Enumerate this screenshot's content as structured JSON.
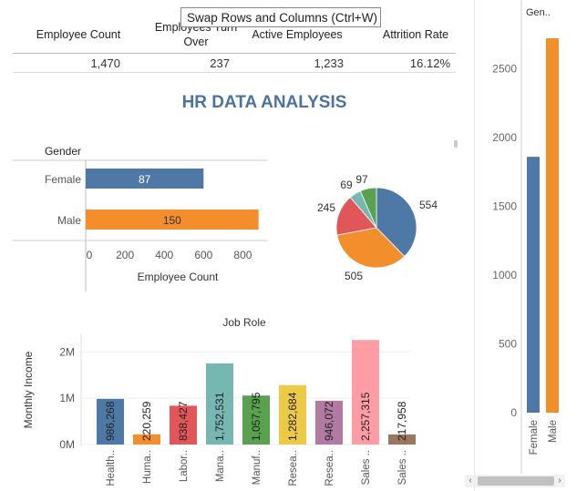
{
  "kpis": [
    {
      "label": "Employee Count",
      "value": "1,470"
    },
    {
      "label": "Employees Turn Over",
      "value": "237"
    },
    {
      "label": "Active Employees",
      "value": "1,233"
    },
    {
      "label": "Attrition Rate",
      "value": "16.12%"
    }
  ],
  "tooltip": "Swap Rows and Columns (Ctrl+W)",
  "dashboard_title": "HR DATA ANALYSIS",
  "colors": {
    "blue": "#4e79a7",
    "orange": "#f28e2b",
    "red": "#e15759",
    "teal": "#76b7b2",
    "green": "#59a14f",
    "yellow": "#edc948",
    "purple": "#b07aa1",
    "pink": "#ff9da7",
    "brown": "#9c755f",
    "title": "#4c72a4"
  },
  "chart_data": [
    {
      "type": "bar",
      "orientation": "horizontal",
      "row_header": "Gender",
      "categories": [
        "Female",
        "Male"
      ],
      "values": [
        87,
        150
      ],
      "bar_lengths": [
        600,
        880
      ],
      "xlabel": "Employee Count",
      "xticks": [
        "0",
        "200",
        "400",
        "600",
        "800"
      ],
      "xlim": [
        0,
        900
      ]
    },
    {
      "type": "pie",
      "values": [
        554,
        505,
        245,
        69,
        97
      ],
      "labels": [
        "554",
        "505",
        "245",
        "69",
        "97"
      ],
      "colors": [
        "#4e79a7",
        "#f28e2b",
        "#e15759",
        "#76b7b2",
        "#59a14f"
      ]
    },
    {
      "type": "bar",
      "title": "Job Role",
      "ylabel": "Monthly Income",
      "yticks": [
        "0M",
        "1M",
        "2M"
      ],
      "ylim": [
        0,
        2400000
      ],
      "categories": [
        "Health..",
        "Huma..",
        "Labor..",
        "Mana..",
        "Manuf..",
        "Resea..",
        "Resea..",
        "Sales ..",
        "Sales .."
      ],
      "values": [
        986268,
        220259,
        838427,
        1752531,
        1057795,
        1282684,
        946072,
        2257315,
        217958
      ],
      "labels": [
        "986,268",
        "220,259",
        "838,427",
        "1,752,531",
        "1,057,795",
        "1,282,684",
        "946,072",
        "2,257,315",
        "217,958"
      ],
      "colors": [
        "#4e79a7",
        "#f28e2b",
        "#e15759",
        "#76b7b2",
        "#59a14f",
        "#edc948",
        "#b07aa1",
        "#ff9da7",
        "#9c755f"
      ]
    },
    {
      "type": "bar",
      "header": "Gen..",
      "categories": [
        "Female",
        "Male"
      ],
      "values": [
        1860,
        2780
      ],
      "colors": [
        "#4e79a7",
        "#f28e2b"
      ],
      "yticks": [
        "0",
        "500",
        "1000",
        "1500",
        "2000",
        "2500"
      ],
      "ylim": [
        0,
        2800
      ]
    }
  ]
}
